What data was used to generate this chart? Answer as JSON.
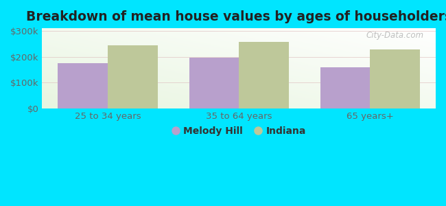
{
  "title": "Breakdown of mean house values by ages of householders",
  "categories": [
    "25 to 34 years",
    "35 to 64 years",
    "65 years+"
  ],
  "melody_hill_values": [
    175000,
    197000,
    158000
  ],
  "indiana_values": [
    243000,
    258000,
    228000
  ],
  "melody_hill_color": "#b8a0cc",
  "indiana_color": "#bec89a",
  "background_outer": "#00e5ff",
  "ylim": [
    0,
    310000
  ],
  "yticks": [
    0,
    100000,
    200000,
    300000
  ],
  "ytick_labels": [
    "$0",
    "$100k",
    "$200k",
    "$300k"
  ],
  "legend_labels": [
    "Melody Hill",
    "Indiana"
  ],
  "bar_width": 0.38,
  "title_fontsize": 13.5,
  "tick_fontsize": 9.5,
  "legend_fontsize": 10
}
